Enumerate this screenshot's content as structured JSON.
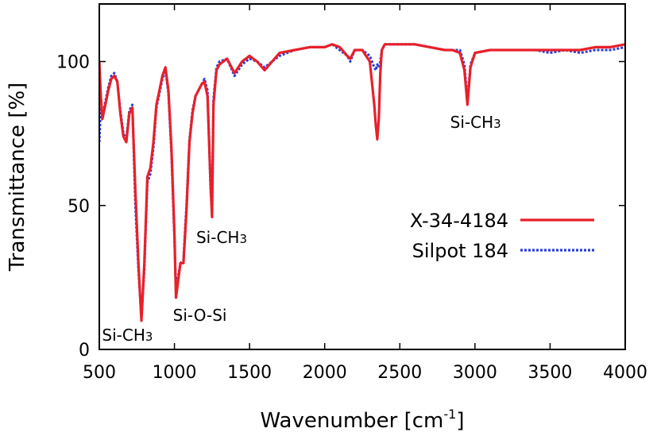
{
  "chart_data": {
    "type": "line",
    "xlabel": "Wavenumber [cm",
    "xlabel_sup": "-1",
    "xlabel_end": "]",
    "ylabel": "Transmittance [%]",
    "xlim": [
      500,
      4000
    ],
    "ylim": [
      0,
      120
    ],
    "xticks": [
      500,
      1000,
      1500,
      2000,
      2500,
      3000,
      3500,
      4000
    ],
    "yticks": [
      0,
      50,
      100
    ],
    "grid": false,
    "legend_position": "center-right",
    "annotations": [
      {
        "text": "Si-CH",
        "sub": "3",
        "x": 518,
        "y": 3
      },
      {
        "text": "Si-O-Si",
        "x": 990,
        "y": 10
      },
      {
        "text": "Si-CH",
        "sub": "3",
        "x": 1145,
        "y": 37
      },
      {
        "text": "Si-CH",
        "sub": "3",
        "x": 2835,
        "y": 77
      }
    ],
    "series": [
      {
        "name": "X-34-4184",
        "color": "#e8202a",
        "style": "solid",
        "x": [
          500,
          510,
          520,
          540,
          560,
          580,
          600,
          620,
          640,
          660,
          680,
          700,
          720,
          740,
          760,
          780,
          800,
          820,
          840,
          860,
          880,
          900,
          920,
          940,
          960,
          980,
          1000,
          1010,
          1020,
          1040,
          1060,
          1080,
          1100,
          1120,
          1140,
          1160,
          1180,
          1200,
          1220,
          1240,
          1250,
          1260,
          1280,
          1300,
          1350,
          1400,
          1450,
          1500,
          1550,
          1600,
          1650,
          1700,
          1800,
          1900,
          2000,
          2050,
          2100,
          2150,
          2170,
          2200,
          2250,
          2300,
          2330,
          2340,
          2350,
          2360,
          2370,
          2380,
          2400,
          2500,
          2600,
          2700,
          2800,
          2850,
          2900,
          2930,
          2950,
          2970,
          3000,
          3100,
          3200,
          3300,
          3400,
          3500,
          3600,
          3700,
          3800,
          3900,
          4000
        ],
        "y": [
          100,
          88,
          80,
          85,
          90,
          94,
          95,
          93,
          82,
          74,
          72,
          82,
          84,
          55,
          30,
          10,
          30,
          60,
          63,
          72,
          85,
          90,
          95,
          98,
          90,
          70,
          40,
          18,
          22,
          30,
          30,
          48,
          72,
          82,
          88,
          90,
          92,
          93,
          88,
          58,
          46,
          85,
          97,
          99,
          101,
          96,
          100,
          102,
          100,
          97,
          100,
          103,
          104,
          105,
          105,
          106,
          105,
          102,
          101,
          104,
          104,
          100,
          85,
          78,
          73,
          80,
          96,
          104,
          106,
          106,
          106,
          105,
          104,
          104,
          103,
          97,
          85,
          98,
          103,
          104,
          104,
          104,
          104,
          104,
          104,
          104,
          105,
          105,
          106
        ]
      },
      {
        "name": "Silpot 184",
        "color": "#2a3fd8",
        "style": "dotted",
        "x": [
          500,
          510,
          520,
          540,
          560,
          580,
          600,
          620,
          640,
          660,
          680,
          700,
          720,
          740,
          760,
          780,
          800,
          820,
          840,
          860,
          880,
          900,
          920,
          940,
          960,
          980,
          1000,
          1010,
          1020,
          1040,
          1060,
          1080,
          1100,
          1120,
          1140,
          1160,
          1180,
          1200,
          1220,
          1240,
          1250,
          1260,
          1280,
          1300,
          1350,
          1400,
          1450,
          1500,
          1550,
          1600,
          1650,
          1700,
          1800,
          1900,
          2000,
          2050,
          2100,
          2150,
          2170,
          2200,
          2250,
          2300,
          2330,
          2340,
          2350,
          2360,
          2370,
          2380,
          2400,
          2500,
          2600,
          2700,
          2800,
          2850,
          2900,
          2930,
          2950,
          2970,
          3000,
          3100,
          3200,
          3300,
          3400,
          3500,
          3600,
          3700,
          3800,
          3900,
          4000
        ],
        "y": [
          72,
          84,
          81,
          86,
          91,
          95,
          96,
          93,
          83,
          75,
          73,
          83,
          85,
          50,
          28,
          11,
          28,
          58,
          61,
          70,
          84,
          89,
          94,
          97,
          89,
          68,
          38,
          20,
          24,
          30,
          31,
          50,
          73,
          83,
          88,
          90,
          92,
          94,
          90,
          56,
          47,
          87,
          98,
          100,
          101,
          95,
          99,
          101,
          100,
          98,
          100,
          102,
          104,
          105,
          105,
          106,
          104,
          102,
          100,
          104,
          104,
          102,
          98,
          97,
          99,
          98,
          100,
          104,
          106,
          106,
          106,
          105,
          104,
          104,
          104,
          99,
          86,
          99,
          103,
          104,
          104,
          104,
          104,
          103,
          104,
          103,
          104,
          104,
          105
        ]
      }
    ]
  }
}
